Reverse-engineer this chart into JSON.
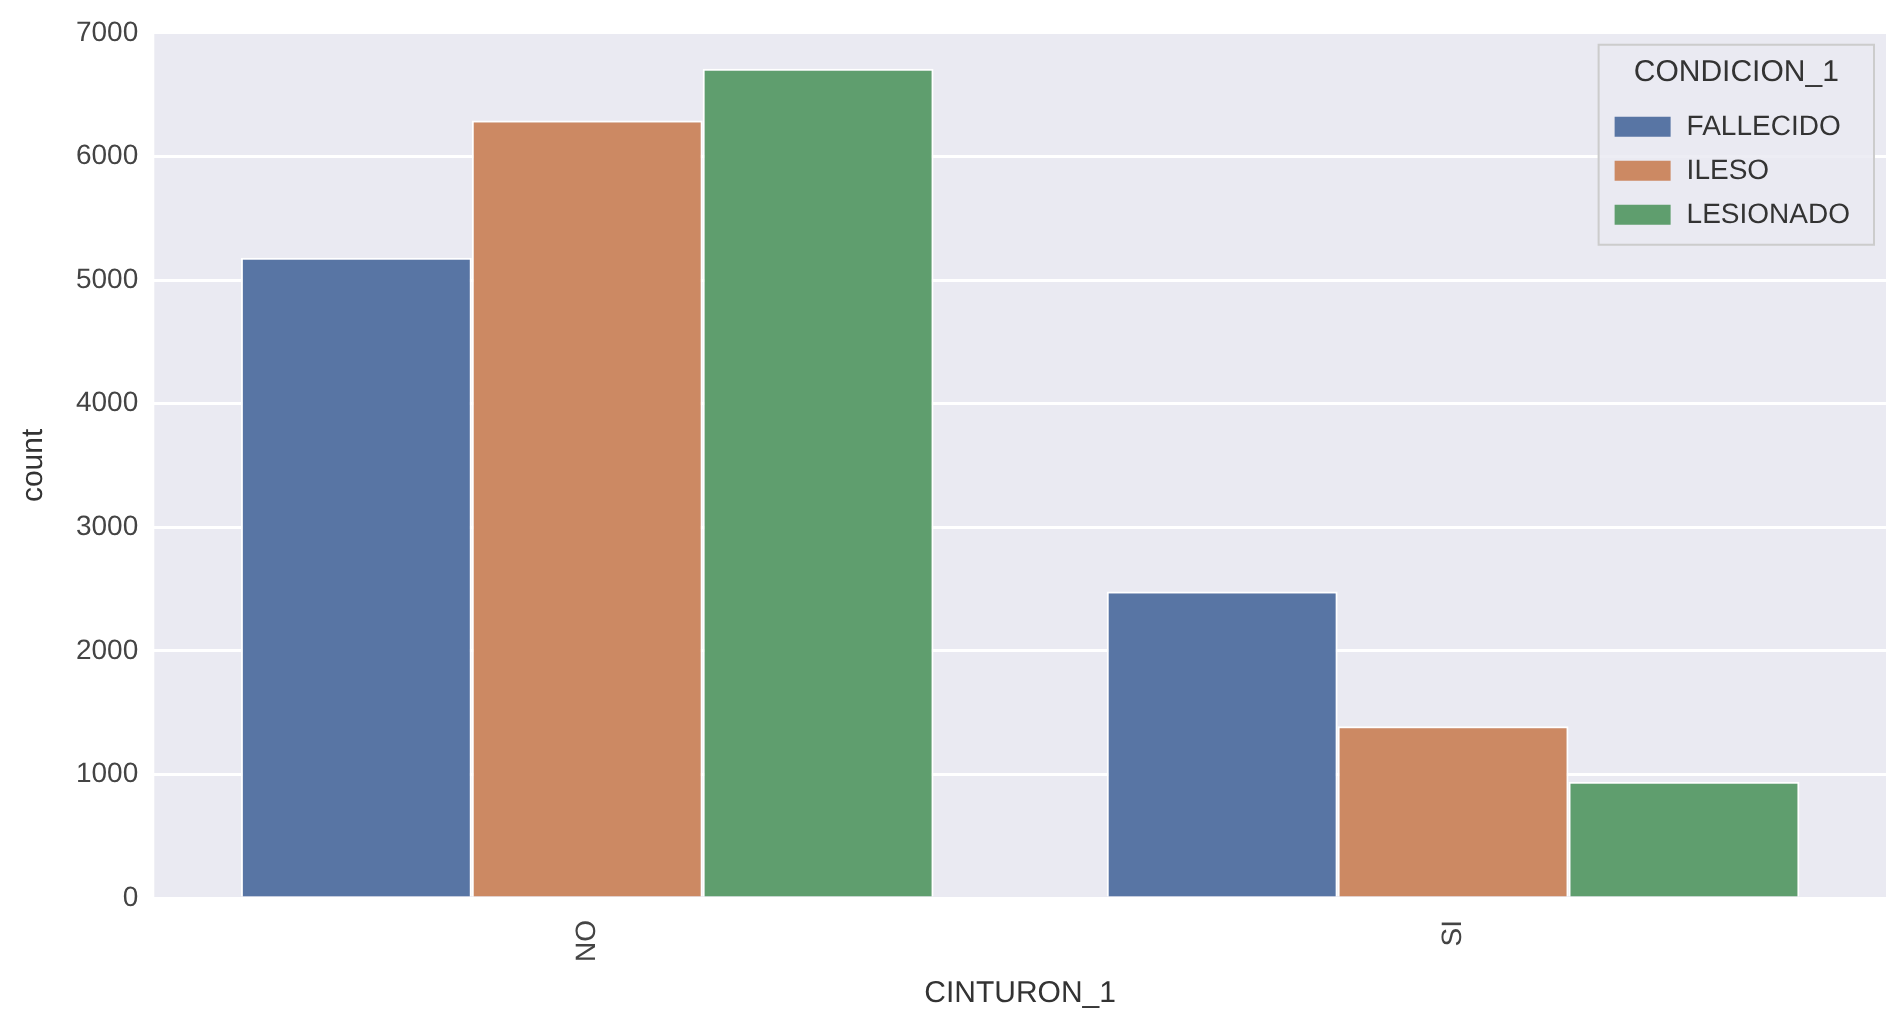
{
  "chart_data": {
    "type": "bar",
    "xlabel": "CINTURON_1",
    "ylabel": "count",
    "legend_title": "CONDICION_1",
    "categories": [
      "NO",
      "SI"
    ],
    "series": [
      {
        "name": "FALLECIDO",
        "color": "#5875a4",
        "values": [
          5180,
          2480
        ]
      },
      {
        "name": "ILESO",
        "color": "#cc8963",
        "values": [
          6290,
          1390
        ]
      },
      {
        "name": "LESIONADO",
        "color": "#5f9e6e",
        "values": [
          6710,
          940
        ]
      }
    ],
    "ylim": [
      0,
      7000
    ],
    "yticks": [
      0,
      1000,
      2000,
      3000,
      4000,
      5000,
      6000,
      7000
    ],
    "grid": "y",
    "legend": "top right"
  }
}
